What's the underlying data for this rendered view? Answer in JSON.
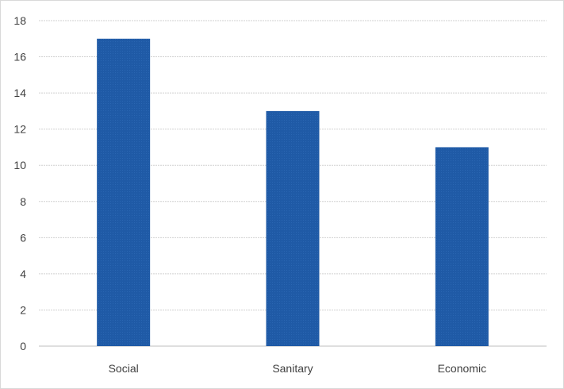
{
  "chart_data": {
    "type": "bar",
    "categories": [
      "Social",
      "Sanitary",
      "Economic"
    ],
    "values": [
      17,
      13,
      11
    ],
    "title": "",
    "xlabel": "",
    "ylabel": "",
    "ylim": [
      0,
      18
    ],
    "yticks": [
      0,
      2,
      4,
      6,
      8,
      10,
      12,
      14,
      16,
      18
    ],
    "grid": true,
    "legend": "none",
    "bar_color": "#1f5aa6"
  }
}
